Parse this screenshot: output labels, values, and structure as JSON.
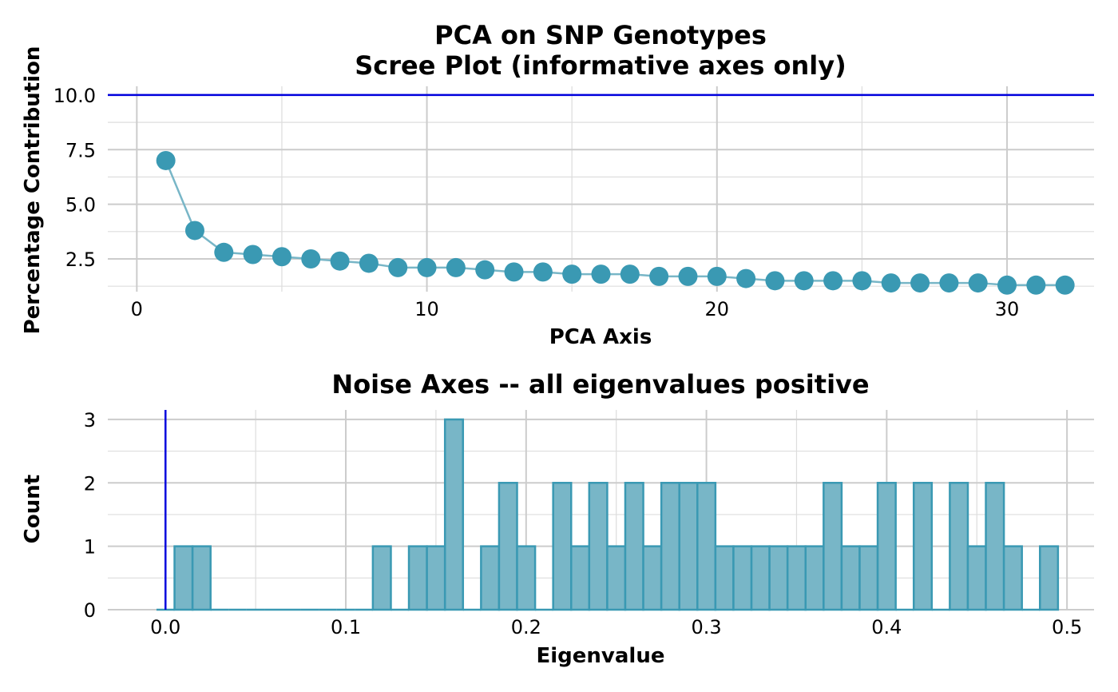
{
  "colors": {
    "point": "#3a99b3",
    "line": "#78b6c7",
    "bar_fill": "#78b6c7",
    "bar_stroke": "#3a99b3",
    "ref_line": "#0000dd"
  },
  "chart_data": [
    {
      "type": "line",
      "title_line1": "PCA on SNP Genotypes",
      "title_line2": "Scree Plot (informative axes only)",
      "xlabel": "PCA Axis",
      "ylabel": "Percentage Contribution",
      "xlim": [
        -1,
        33
      ],
      "ylim": [
        1.0,
        10.4
      ],
      "x_ticks": [
        0,
        10,
        20,
        30
      ],
      "y_ticks": [
        2.5,
        5.0,
        7.5,
        10.0
      ],
      "y_tick_labels": [
        "2.5",
        "5.0",
        "7.5",
        "10.0"
      ],
      "reference_line_y": 10.0,
      "grid": true,
      "x": [
        1,
        2,
        3,
        4,
        5,
        6,
        7,
        8,
        9,
        10,
        11,
        12,
        13,
        14,
        15,
        16,
        17,
        18,
        19,
        20,
        21,
        22,
        23,
        24,
        25,
        26,
        27,
        28,
        29,
        30,
        31,
        32
      ],
      "y": [
        7.0,
        3.8,
        2.8,
        2.7,
        2.6,
        2.5,
        2.4,
        2.3,
        2.1,
        2.1,
        2.1,
        2.0,
        1.9,
        1.9,
        1.8,
        1.8,
        1.8,
        1.7,
        1.7,
        1.7,
        1.6,
        1.5,
        1.5,
        1.5,
        1.5,
        1.4,
        1.4,
        1.4,
        1.4,
        1.3,
        1.3,
        1.3
      ]
    },
    {
      "type": "bar",
      "title": "Noise Axes -- all eigenvalues positive",
      "xlabel": "Eigenvalue",
      "ylabel": "Count",
      "xlim": [
        -0.032,
        0.515
      ],
      "ylim": [
        0,
        3.15
      ],
      "x_ticks": [
        0.0,
        0.1,
        0.2,
        0.3,
        0.4,
        0.5
      ],
      "x_tick_labels": [
        "0.0",
        "0.1",
        "0.2",
        "0.3",
        "0.4",
        "0.5"
      ],
      "y_ticks": [
        0,
        1,
        2,
        3
      ],
      "reference_line_x": 0.0,
      "grid": true,
      "bin_start": -0.005,
      "bin_width": 0.01,
      "counts": [
        0,
        1,
        1,
        0,
        0,
        0,
        0,
        0,
        0,
        0,
        0,
        0,
        1,
        0,
        1,
        1,
        3,
        0,
        1,
        2,
        1,
        0,
        2,
        1,
        2,
        1,
        2,
        1,
        2,
        2,
        2,
        1,
        1,
        1,
        1,
        1,
        1,
        2,
        1,
        1,
        2,
        0,
        2,
        0,
        2,
        1,
        2,
        1,
        0,
        1
      ]
    }
  ]
}
